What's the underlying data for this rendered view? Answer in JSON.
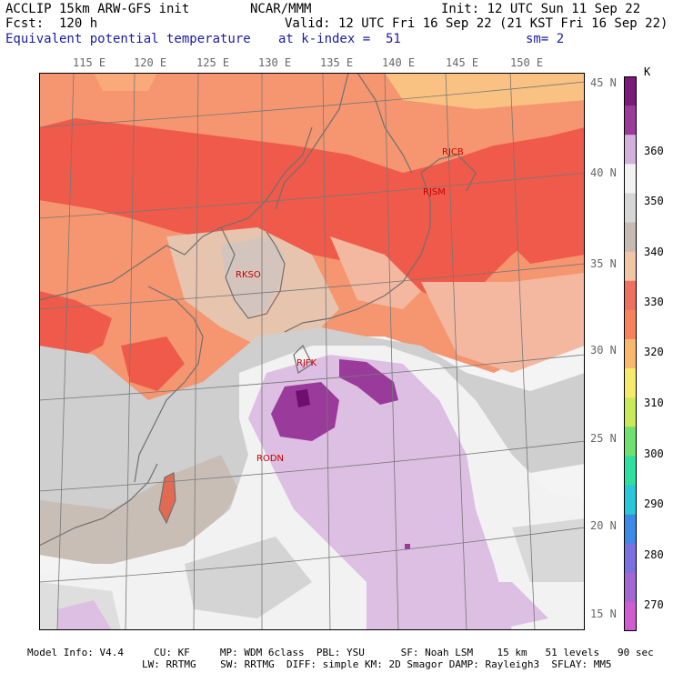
{
  "header": {
    "model": "ACCLIP 15km ARW-GFS init",
    "fcst": "Fcst:  120 h",
    "org": "NCAR/MMM",
    "init": "Init: 12 UTC Sun 11 Sep 22",
    "valid": "Valid: 12 UTC Fri 16 Sep 22 (21 KST Fri 16 Sep 22)",
    "field": "Equivalent potential temperature",
    "level": "at k-index =  51",
    "smooth": "sm= 2"
  },
  "lon_ticks": [
    "115 E",
    "120 E",
    "125 E",
    "130 E",
    "135 E",
    "140 E",
    "145 E",
    "150 E"
  ],
  "lat_ticks": [
    "45 N",
    "40 N",
    "35 N",
    "30 N",
    "25 N",
    "20 N",
    "15 N"
  ],
  "colorbar": {
    "unit": "K",
    "labels": [
      "360",
      "350",
      "340",
      "330",
      "320",
      "310",
      "300",
      "290",
      "280",
      "270"
    ],
    "colors": [
      "#7a1a7a",
      "#9a3a9a",
      "#d4b0dc",
      "#f2f2f2",
      "#d6d6d6",
      "#c6bab2",
      "#f4c4a6",
      "#ef7060",
      "#f7825c",
      "#f9b86c",
      "#f6ea6c",
      "#c8ea5a",
      "#70e070",
      "#2ee0a0",
      "#28c8d8",
      "#3c8ae8",
      "#7a70e0",
      "#a466d0",
      "#d05cd0"
    ]
  },
  "stations": [
    "RJCB",
    "RJSM",
    "RKSO",
    "RJFK",
    "RODN"
  ],
  "footer": {
    "line1": "Model Info: V4.4     CU: KF     MP: WDM 6class  PBL: YSU      SF: Noah LSM    15 km   51 levels   90 sec",
    "line2": "LW: RRTMG    SW: RRTMG  DIFF: simple KM: 2D Smagor DAMP: Rayleigh3  SFLAY: MM5"
  }
}
